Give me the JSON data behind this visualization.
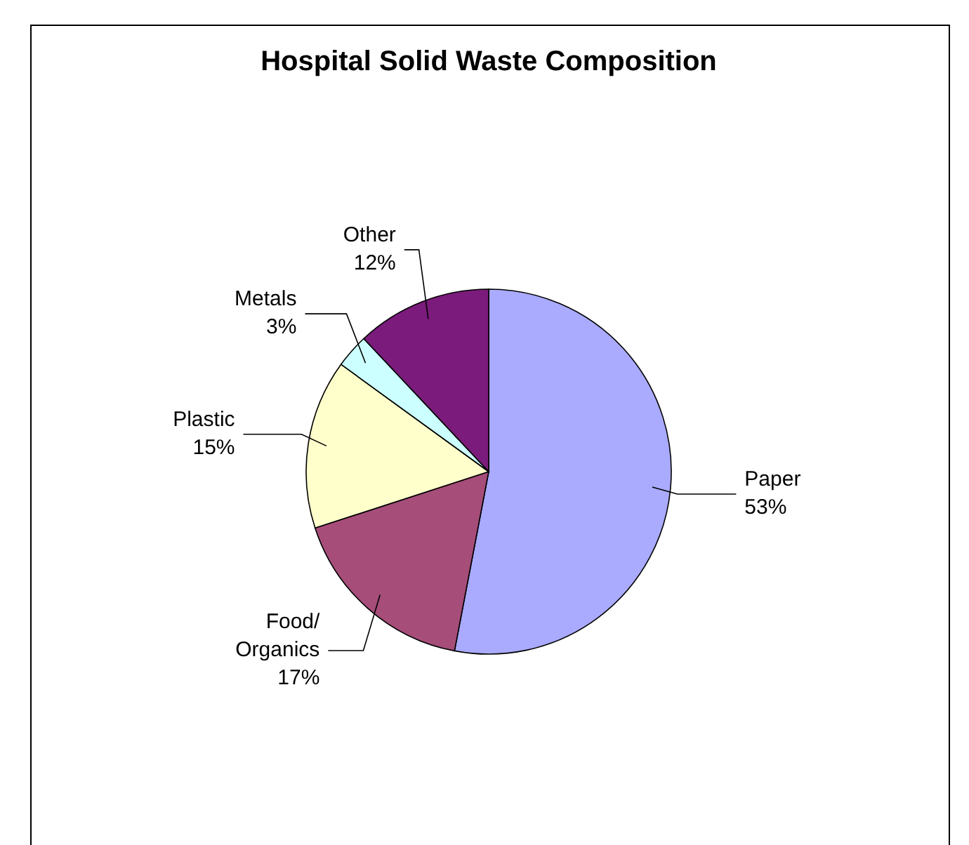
{
  "chart_data": {
    "type": "pie",
    "title": "Hospital Solid Waste Composition",
    "categories": [
      "Paper",
      "Food/\nOrganics",
      "Plastic",
      "Metals",
      "Other"
    ],
    "values": [
      53,
      17,
      15,
      3,
      12
    ],
    "colors": [
      "#aaaaff",
      "#a64d79",
      "#ffffcc",
      "#ccffff",
      "#7b1b7b"
    ],
    "value_labels": [
      "53%",
      "17%",
      "15%",
      "3%",
      "12%"
    ]
  }
}
